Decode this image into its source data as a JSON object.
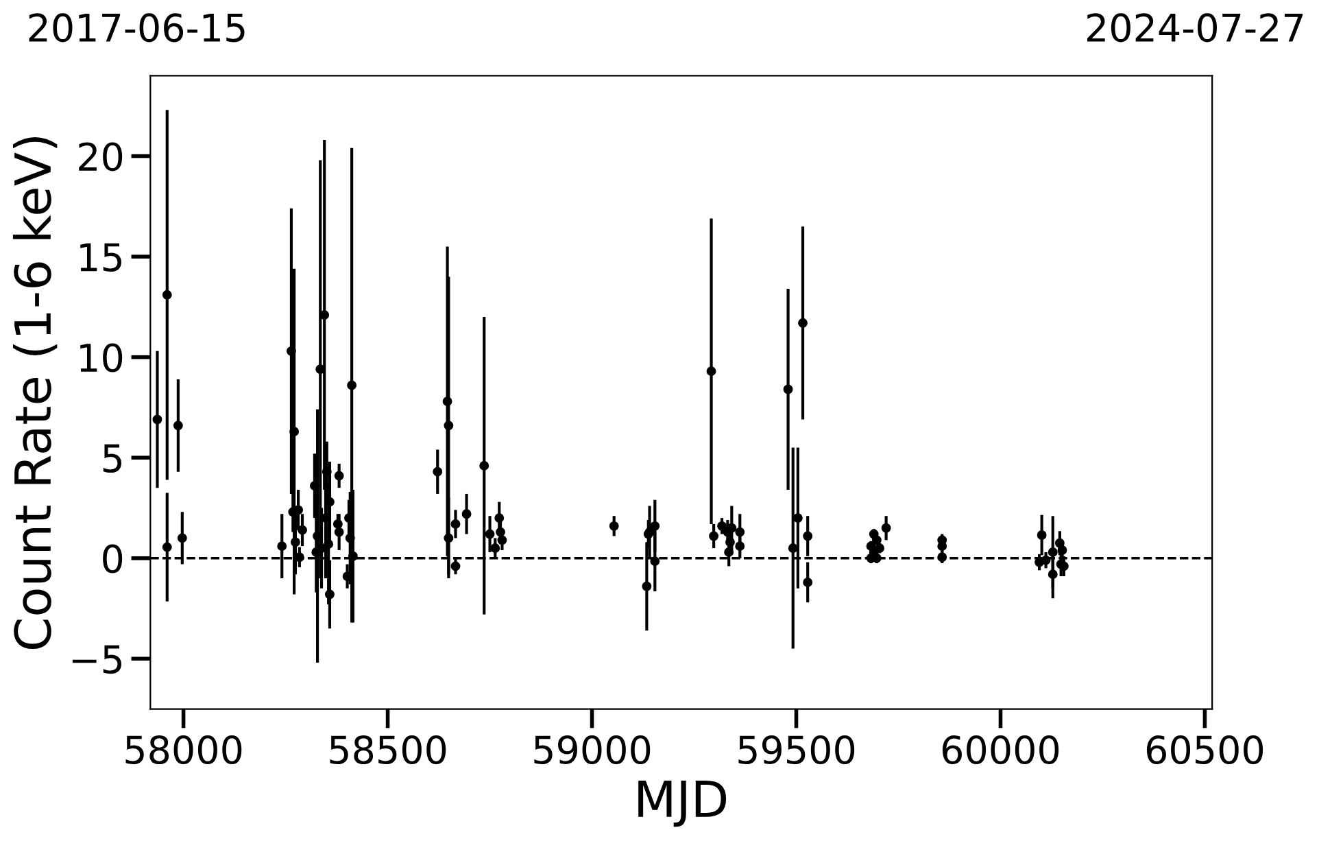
{
  "chart_data": {
    "type": "scatter",
    "xlabel": "MJD",
    "ylabel": "Count Rate (1-6 keV)",
    "x": [
      57936,
      57960,
      57960,
      57987,
      57997,
      58241,
      58264,
      58268,
      58271,
      58274,
      58281,
      58284,
      58291,
      58321,
      58325,
      58328,
      58335,
      58338,
      58345,
      58348,
      58351,
      58355,
      58358,
      58358,
      58378,
      58381,
      58381,
      58401,
      58405,
      58408,
      58412,
      58415,
      58622,
      58646,
      58649,
      58649,
      58666,
      58666,
      58693,
      58736,
      58750,
      58763,
      58773,
      58776,
      58780,
      59054,
      59134,
      59138,
      59141,
      59154,
      59154,
      59292,
      59298,
      59318,
      59332,
      59335,
      59338,
      59342,
      59362,
      59362,
      59480,
      59492,
      59504,
      59516,
      59528,
      59528,
      59683,
      59683,
      59690,
      59690,
      59697,
      59697,
      59704,
      59720,
      59857,
      59857,
      59857,
      60095,
      60101,
      60111,
      60128,
      60128,
      60145,
      60151,
      60155,
      60148
    ],
    "values": [
      6.9,
      13.1,
      0.55,
      6.6,
      1.0,
      0.6,
      10.3,
      2.3,
      6.3,
      0.8,
      2.4,
      0.05,
      1.4,
      3.6,
      0.3,
      1.1,
      9.4,
      0.5,
      12.1,
      2.0,
      4.3,
      0.7,
      -1.8,
      2.8,
      1.7,
      4.1,
      1.3,
      -0.9,
      2.0,
      1.0,
      8.6,
      0.1,
      4.3,
      7.8,
      6.6,
      1.0,
      -0.4,
      1.7,
      2.2,
      4.6,
      1.2,
      0.5,
      2.0,
      1.3,
      0.9,
      1.6,
      -1.4,
      1.2,
      1.3,
      1.6,
      -0.15,
      9.3,
      1.1,
      1.6,
      1.3,
      0.3,
      0.8,
      1.5,
      1.3,
      0.6,
      8.4,
      0.5,
      2.0,
      11.7,
      1.1,
      -1.2,
      0.0,
      0.6,
      1.2,
      0.3,
      0.9,
      0.0,
      0.5,
      1.5,
      0.9,
      0.6,
      0.05,
      -0.2,
      1.15,
      -0.1,
      -0.8,
      0.3,
      0.75,
      0.4,
      -0.4,
      -0.3
    ],
    "errors": [
      3.4,
      9.2,
      2.7,
      2.3,
      1.3,
      1.6,
      7.1,
      1.0,
      8.1,
      1.6,
      1.0,
      0.5,
      0.8,
      1.6,
      2.0,
      6.3,
      10.4,
      2.0,
      8.7,
      3.0,
      1.5,
      3.0,
      1.7,
      2.0,
      0.5,
      0.6,
      0.9,
      0.6,
      0.9,
      2.3,
      11.8,
      3.3,
      1.1,
      7.7,
      7.4,
      2.0,
      0.4,
      0.7,
      1.0,
      7.4,
      0.9,
      0.5,
      0.8,
      0.6,
      0.5,
      0.5,
      2.2,
      0.7,
      1.3,
      1.3,
      1.5,
      7.6,
      0.6,
      0.4,
      0.6,
      0.7,
      0.5,
      1.1,
      0.9,
      0.6,
      5.0,
      5.0,
      3.5,
      4.8,
      1.0,
      1.0,
      0.25,
      0.25,
      0.25,
      0.25,
      0.25,
      0.25,
      0.25,
      0.6,
      0.3,
      0.3,
      0.3,
      0.4,
      1.0,
      0.4,
      1.2,
      1.8,
      0.6,
      0.4,
      0.5,
      0.6
    ],
    "color": "#000000",
    "marker": "circle",
    "xlim": [
      57919,
      60518
    ],
    "xticks": [
      58000,
      58500,
      59000,
      59500,
      60000,
      60500
    ],
    "ylim": [
      -7.5,
      24
    ],
    "yticks": [
      {
        "value": -5,
        "label": "−5"
      },
      0,
      5,
      10,
      15,
      20
    ],
    "annotations": [
      "2017-06-15",
      "2024-07-27"
    ],
    "ref_lines": [
      {
        "axis": "y",
        "value": 0,
        "color": "#000000",
        "line_style": "dashed"
      }
    ],
    "legend": false
  }
}
